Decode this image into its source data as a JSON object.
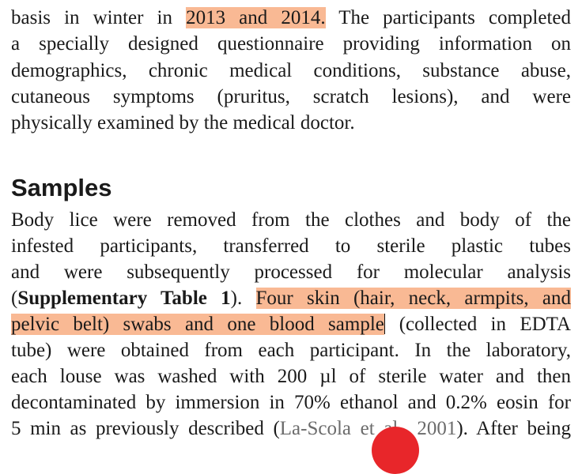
{
  "para1": {
    "l1a": "basis in winter in ",
    "l1hl": "2013 and 2014.",
    "l1b": " The participants completed",
    "l2": "a specially designed questionnaire providing information on",
    "l3": "demographics, chronic medical conditions, substance abuse,",
    "l4": "cutaneous symptoms (pruritus, scratch lesions), and were",
    "l5": "physically examined by the medical doctor."
  },
  "heading": "Samples",
  "para2": {
    "l1": "Body lice were removed from the clothes and body of the",
    "l2": "infested participants, transferred to sterile plastic tubes",
    "l3": "and were subsequently processed for molecular analysis",
    "l4a": "(",
    "l4bold": "Supplementary Table 1",
    "l4b": "). ",
    "l4hl": "Four skin (hair, neck, armpits, and",
    "l5hl": "pelvic belt) swabs and one blood sample",
    "l5b": " (collected in EDTA",
    "l6": "tube) were obtained from each participant. In the laboratory,",
    "l7": "each louse was washed with 200 µl of sterile water and then",
    "l8": "decontaminated by immersion in 70% ethanol and 0.2% eosin for",
    "l9a": "5 min as previously described (",
    "l9ref": "La-Scola et al., 2001",
    "l9b": "). After being"
  },
  "colors": {
    "highlight": "#f9b994",
    "reference": "#6b6b6b",
    "marker": "#e8262a"
  }
}
